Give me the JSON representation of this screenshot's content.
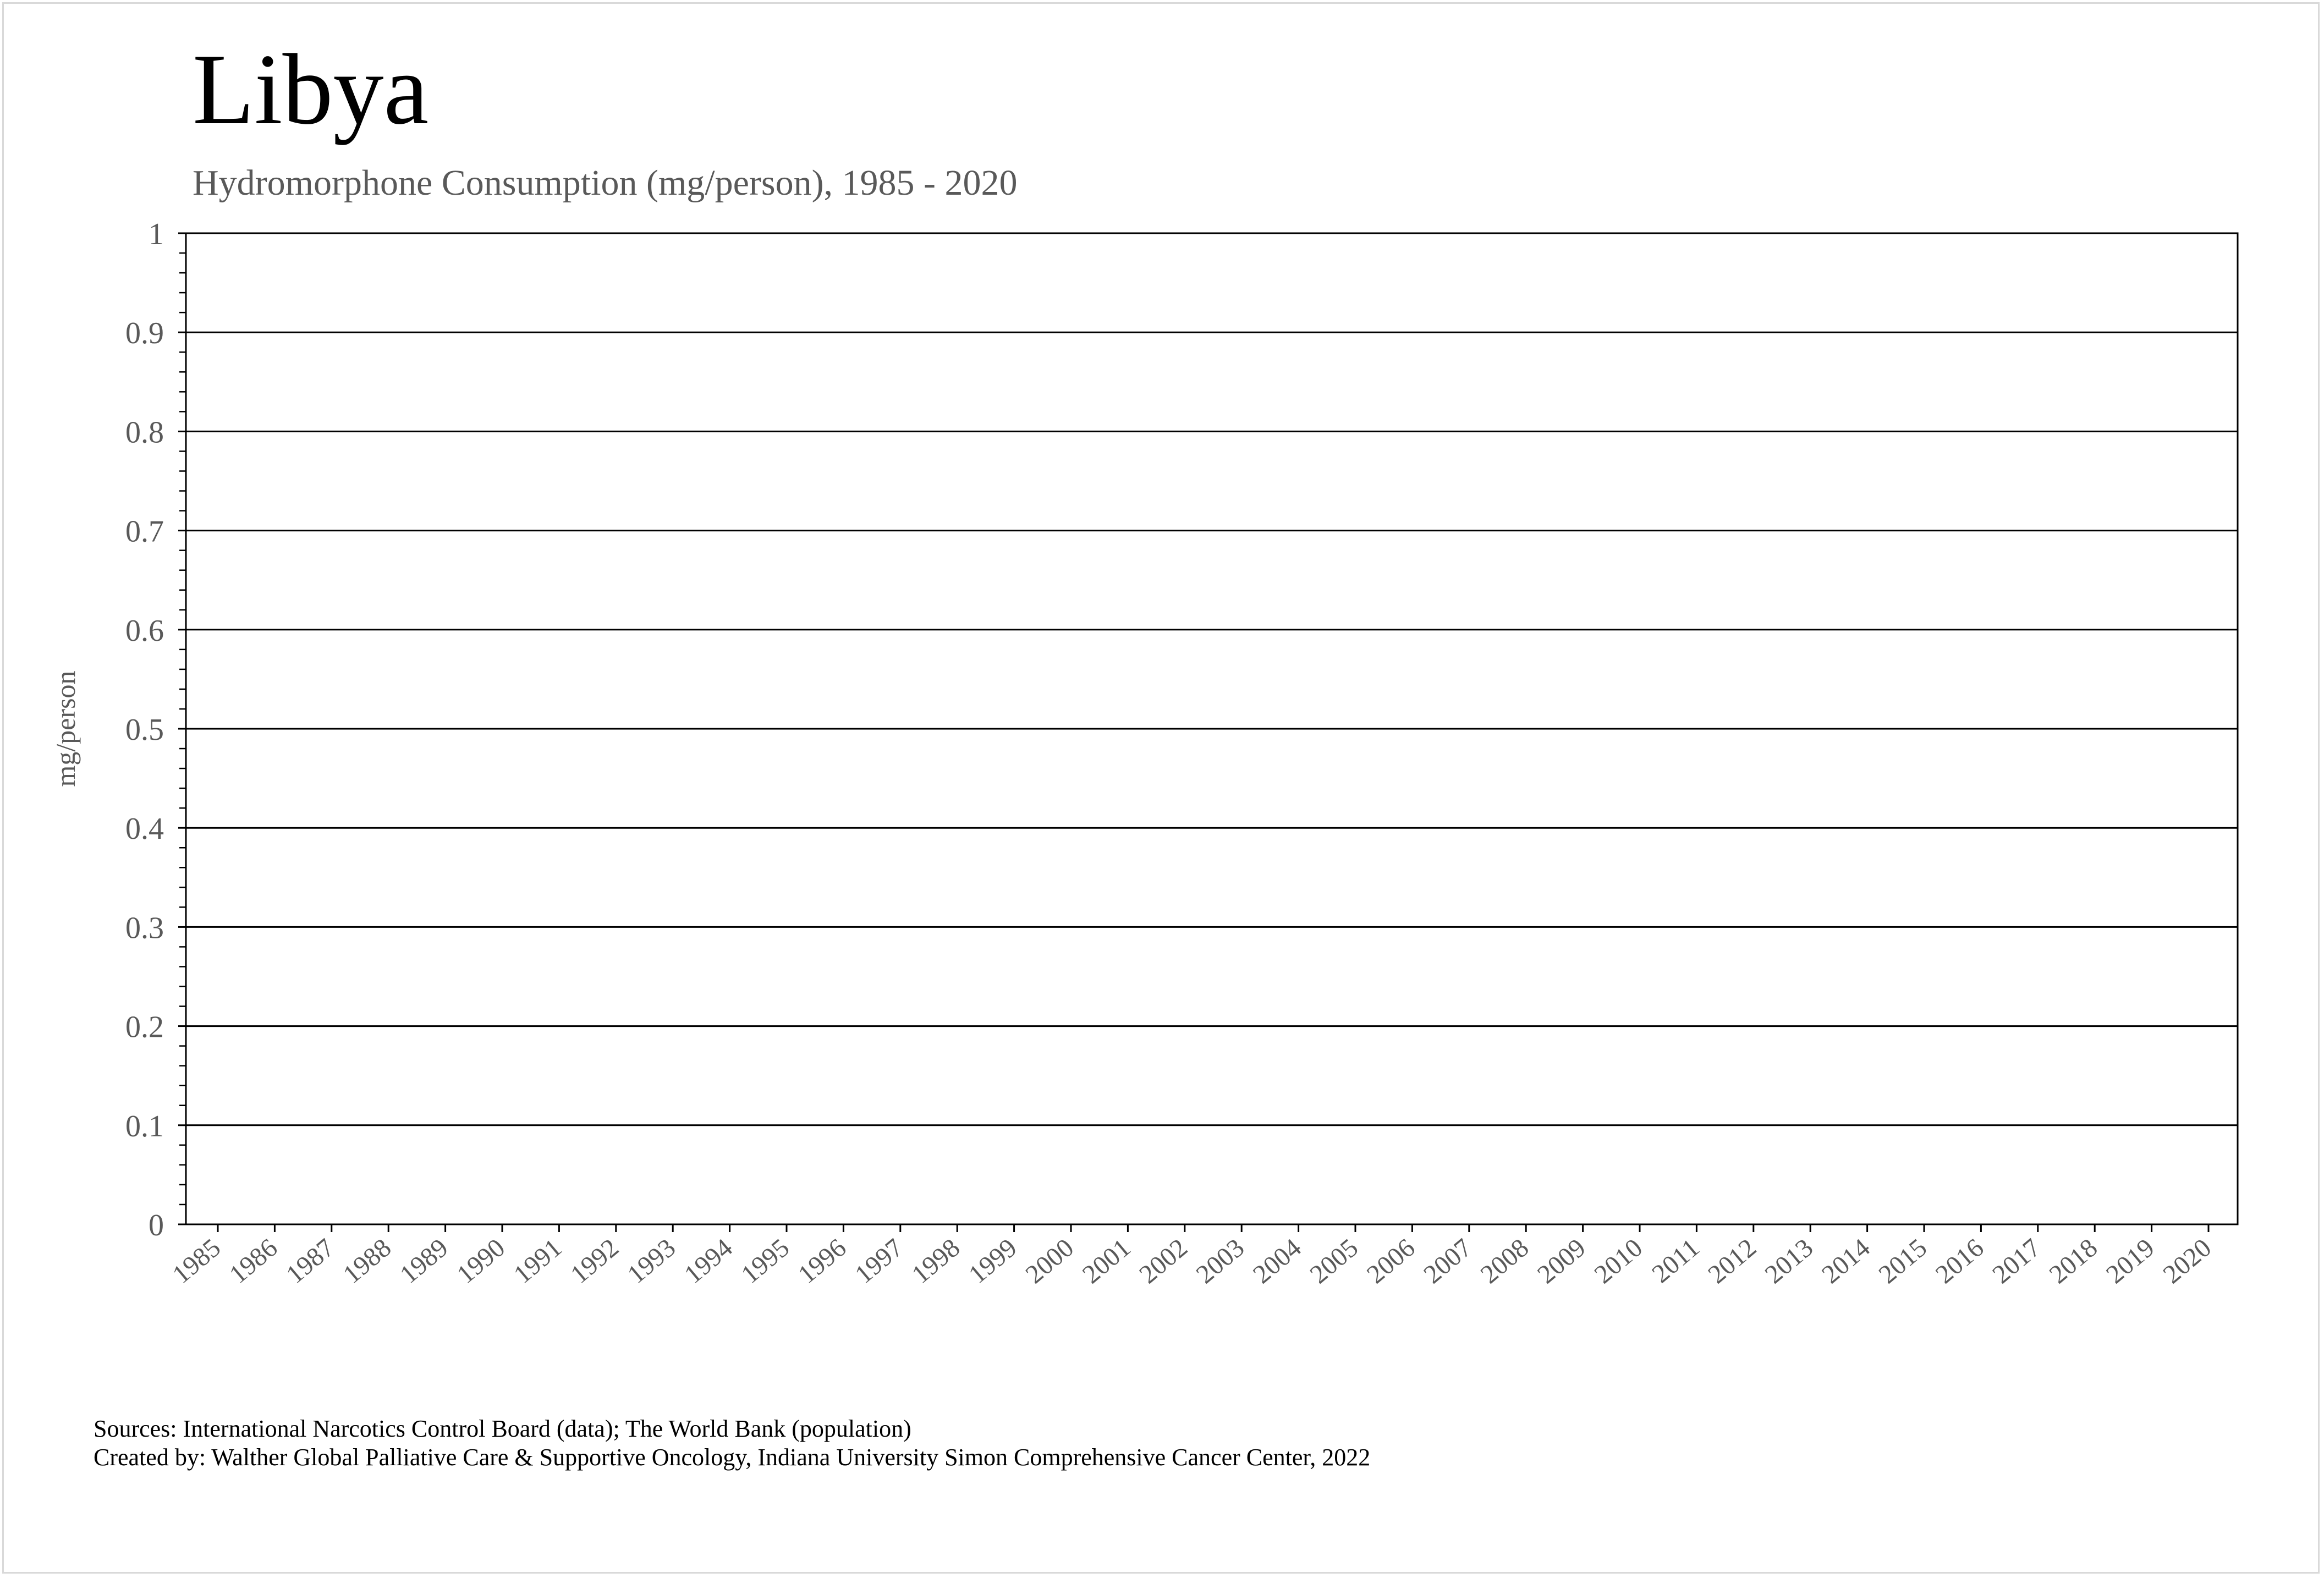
{
  "header": {
    "title": "Libya",
    "subtitle": "Hydromorphone Consumption (mg/person), 1985 - 2020"
  },
  "footer": {
    "sources": "Sources: International Narcotics Control Board (data); The World Bank (population)",
    "created_by": "Created by: Walther Global Palliative Care & Supportive Oncology, Indiana University Simon Comprehensive Cancer Center, 2022"
  },
  "colors": {
    "title": "#000000",
    "subtitle": "#595959",
    "axis_text": "#595959",
    "gridline": "#000000",
    "frame_border": "#d9d9d9"
  },
  "chart_data": {
    "type": "line",
    "title": "Libya",
    "subtitle": "Hydromorphone Consumption (mg/person), 1985 - 2020",
    "xlabel": "",
    "ylabel": "mg/person",
    "categories": [
      "1985",
      "1986",
      "1987",
      "1988",
      "1989",
      "1990",
      "1991",
      "1992",
      "1993",
      "1994",
      "1995",
      "1996",
      "1997",
      "1998",
      "1999",
      "2000",
      "2001",
      "2002",
      "2003",
      "2004",
      "2005",
      "2006",
      "2007",
      "2008",
      "2009",
      "2010",
      "2011",
      "2012",
      "2013",
      "2014",
      "2015",
      "2016",
      "2017",
      "2018",
      "2019",
      "2020"
    ],
    "series": [],
    "ylim": [
      0,
      1
    ],
    "yticks": [
      "0",
      "0.1",
      "0.2",
      "0.3",
      "0.4",
      "0.5",
      "0.6",
      "0.7",
      "0.8",
      "0.9",
      "1"
    ],
    "grid": true,
    "legend": "none"
  }
}
